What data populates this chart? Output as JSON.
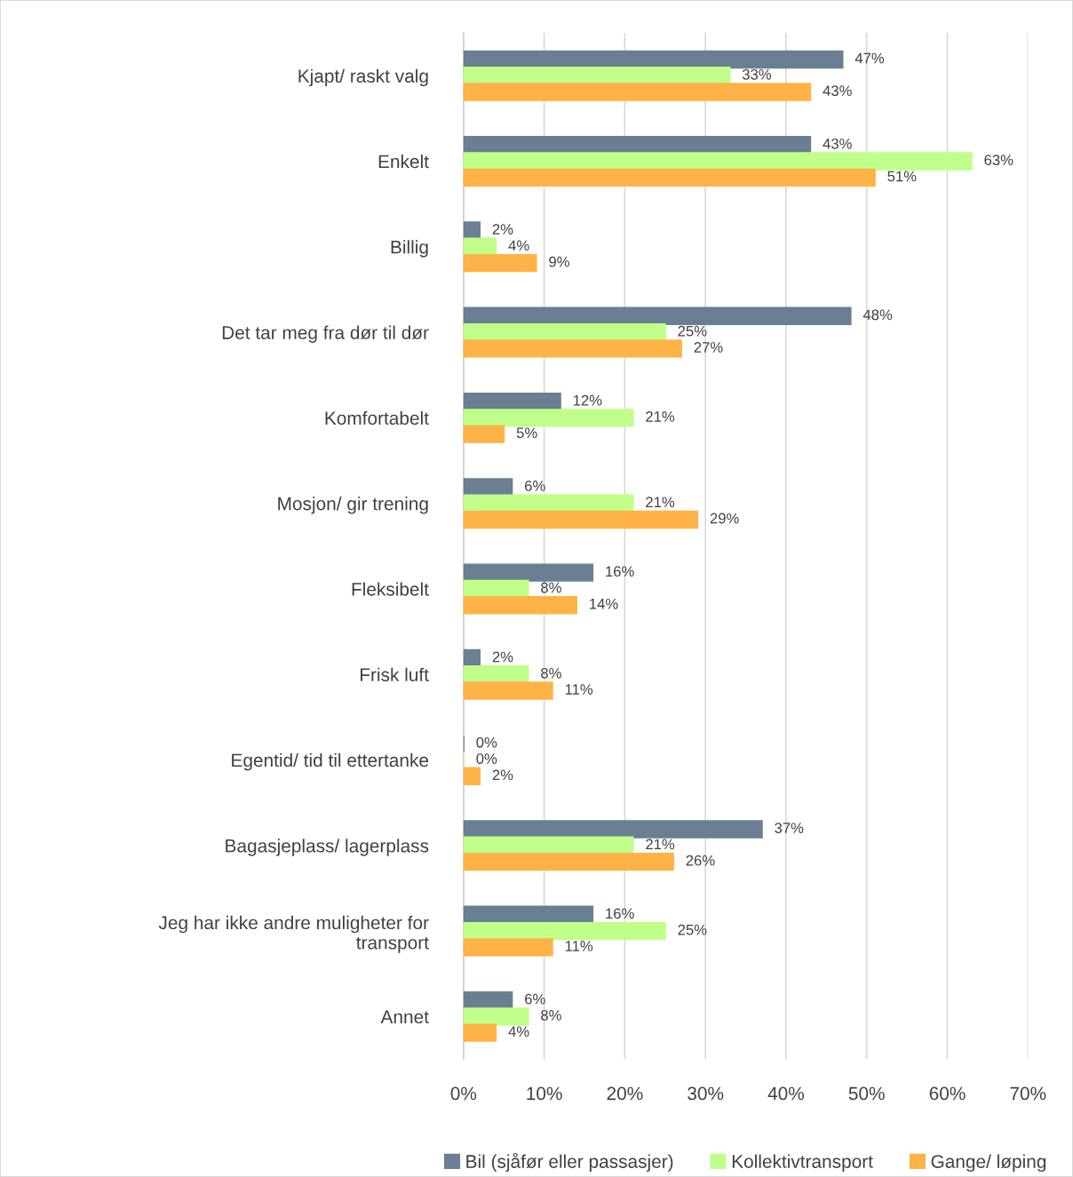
{
  "chart_data": {
    "type": "bar",
    "orientation": "horizontal",
    "categories": [
      "Kjapt/ raskt valg",
      "Enkelt",
      "Billig",
      "Det tar meg fra dør til dør",
      "Komfortabelt",
      "Mosjon/ gir trening",
      "Fleksibelt",
      "Frisk luft",
      "Egentid/ tid til ettertanke",
      "Bagasjeplass/ lagerplass",
      "Jeg har ikke andre muligheter for\ntransport",
      "Annet"
    ],
    "series": [
      {
        "name": "Bil (sjåfør eller passasjer)",
        "color": "#6b7f93",
        "values": [
          47,
          43,
          2,
          48,
          12,
          6,
          16,
          2,
          0,
          37,
          16,
          6
        ],
        "value_labels": [
          "47%",
          "43%",
          "2%",
          "48%",
          "12%",
          "6%",
          "16%",
          "2%",
          "0%",
          "37%",
          "16%",
          "6%"
        ]
      },
      {
        "name": "Kollektivtransport",
        "color": "#bfff8a",
        "values": [
          33,
          63,
          4,
          25,
          21,
          21,
          8,
          8,
          0,
          21,
          25,
          8
        ],
        "value_labels": [
          "33%",
          "63%",
          "4%",
          "25%",
          "21%",
          "21%",
          "8%",
          "8%",
          "0%",
          "21%",
          "25%",
          "8%"
        ]
      },
      {
        "name": "Gange/ løping",
        "color": "#ffb347",
        "values": [
          43,
          51,
          9,
          27,
          5,
          29,
          14,
          11,
          2,
          26,
          11,
          4
        ],
        "value_labels": [
          "43%",
          "51%",
          "9%",
          "27%",
          "5%",
          "29%",
          "14%",
          "11%",
          "2%",
          "26%",
          "11%",
          "4%"
        ]
      }
    ],
    "xlim": [
      0,
      70
    ],
    "xticks": [
      {
        "value": 0,
        "label": "0%"
      },
      {
        "value": 10,
        "label": "10%"
      },
      {
        "value": 20,
        "label": "20%"
      },
      {
        "value": 30,
        "label": "30%"
      },
      {
        "value": 40,
        "label": "40%"
      },
      {
        "value": 50,
        "label": "50%"
      },
      {
        "value": 60,
        "label": "60%"
      },
      {
        "value": 70,
        "label": "70%"
      }
    ],
    "grid": "x",
    "legend": "bottom"
  }
}
